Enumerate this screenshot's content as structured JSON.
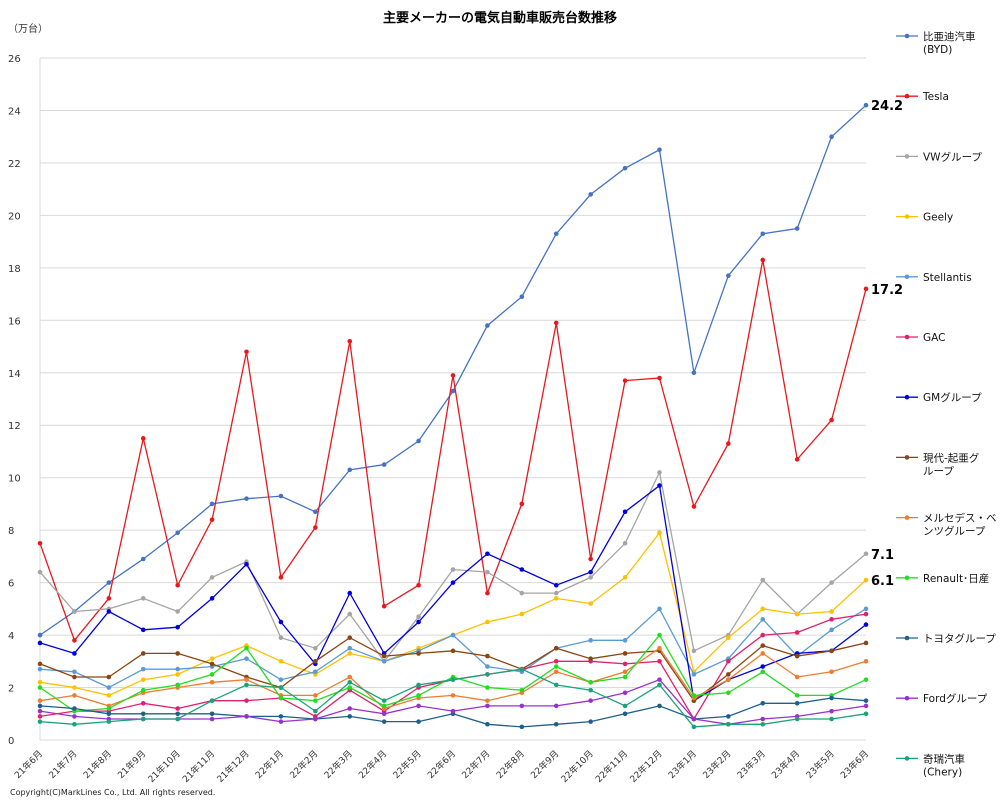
{
  "chart_data": {
    "type": "line",
    "title": "主要メーカーの電気自動車販売台数推移",
    "unit_label": "（万台）",
    "ylim": [
      0,
      26
    ],
    "y_ticks": [
      "0",
      "2",
      "4",
      "6",
      "8",
      "10",
      "12",
      "14",
      "16",
      "18",
      "20",
      "22",
      "24",
      "26"
    ],
    "grid": true,
    "legend_placement": "right",
    "categories": [
      "21年6月",
      "21年7月",
      "21年8月",
      "21年9月",
      "21年10月",
      "21年11月",
      "21年12月",
      "22年1月",
      "22年2月",
      "22年3月",
      "22年4月",
      "22年5月",
      "22年6月",
      "22年7月",
      "22年8月",
      "22年9月",
      "22年10月",
      "22年11月",
      "22年12月",
      "23年1月",
      "23年2月",
      "23年3月",
      "23年4月",
      "23年5月",
      "23年6月"
    ],
    "series": [
      {
        "name": "比亜迪汽車\n(BYD)",
        "color": "#4472C4",
        "values": [
          4.0,
          4.9,
          6.0,
          6.9,
          7.9,
          9.0,
          9.2,
          9.3,
          8.7,
          10.3,
          10.5,
          11.4,
          13.3,
          15.8,
          16.9,
          19.3,
          20.8,
          21.8,
          22.5,
          14.0,
          17.7,
          19.3,
          19.5,
          23.0,
          24.2
        ]
      },
      {
        "name": "Tesla",
        "color": "#E8181E",
        "values": [
          7.5,
          3.8,
          5.4,
          11.5,
          5.9,
          8.4,
          14.8,
          6.2,
          8.1,
          15.2,
          5.1,
          5.9,
          13.9,
          5.6,
          9.0,
          15.9,
          6.9,
          13.7,
          13.8,
          8.9,
          11.3,
          18.3,
          10.7,
          12.2,
          17.2
        ]
      },
      {
        "name": "VWグループ",
        "color": "#A5A5A5",
        "values": [
          6.4,
          4.9,
          5.0,
          5.4,
          4.9,
          6.2,
          6.8,
          3.9,
          3.5,
          4.8,
          3.0,
          4.7,
          6.5,
          6.4,
          5.6,
          5.6,
          6.2,
          7.5,
          10.2,
          3.4,
          4.0,
          6.1,
          4.8,
          6.0,
          7.1
        ]
      },
      {
        "name": "Geely",
        "color": "#FFC000",
        "values": [
          2.2,
          2.0,
          1.7,
          2.3,
          2.5,
          3.1,
          3.6,
          3.0,
          2.5,
          3.3,
          3.0,
          3.5,
          4.0,
          4.5,
          4.8,
          5.4,
          5.2,
          6.2,
          7.9,
          2.6,
          3.9,
          5.0,
          4.8,
          4.9,
          6.1
        ]
      },
      {
        "name": "Stellantis",
        "color": "#5B9BD5",
        "values": [
          2.7,
          2.6,
          2.0,
          2.7,
          2.7,
          2.8,
          3.1,
          2.3,
          2.6,
          3.5,
          3.0,
          3.4,
          4.0,
          2.8,
          2.6,
          3.5,
          3.8,
          3.8,
          5.0,
          2.5,
          3.1,
          4.6,
          3.2,
          4.2,
          5.0
        ]
      },
      {
        "name": "GAC",
        "color": "#E0206B",
        "values": [
          0.9,
          1.1,
          1.1,
          1.4,
          1.2,
          1.5,
          1.5,
          1.6,
          0.9,
          1.9,
          1.1,
          2.0,
          2.3,
          2.5,
          2.7,
          3.0,
          3.0,
          2.9,
          3.0,
          0.8,
          3.0,
          4.0,
          4.1,
          4.6,
          4.8
        ]
      },
      {
        "name": "GMグループ",
        "color": "#0000E0",
        "values": [
          3.7,
          3.3,
          4.9,
          4.2,
          4.3,
          5.4,
          6.7,
          4.5,
          2.9,
          5.6,
          3.3,
          4.5,
          6.0,
          7.1,
          6.5,
          5.9,
          6.4,
          8.7,
          9.7,
          1.5,
          2.3,
          2.8,
          3.3,
          3.4,
          4.4
        ]
      },
      {
        "name": "現代-起亜グ\nループ",
        "color": "#8B4513",
        "values": [
          2.9,
          2.4,
          2.4,
          3.3,
          3.3,
          2.9,
          2.4,
          2.0,
          3.0,
          3.9,
          3.2,
          3.3,
          3.4,
          3.2,
          2.7,
          3.5,
          3.1,
          3.3,
          3.4,
          1.5,
          2.5,
          3.6,
          3.2,
          3.4,
          3.7
        ]
      },
      {
        "name": "メルセデス・ベ\nンツグループ",
        "color": "#ED7D31",
        "values": [
          1.5,
          1.7,
          1.3,
          1.8,
          2.0,
          2.2,
          2.3,
          1.7,
          1.7,
          2.4,
          1.2,
          1.6,
          1.7,
          1.5,
          1.8,
          2.6,
          2.2,
          2.6,
          3.5,
          1.6,
          2.3,
          3.3,
          2.4,
          2.6,
          3.0
        ]
      },
      {
        "name": "Renault･日産",
        "color": "#22DD22",
        "values": [
          2.0,
          1.1,
          1.2,
          1.9,
          2.1,
          2.5,
          3.5,
          1.6,
          1.5,
          2.0,
          1.3,
          1.7,
          2.4,
          2.0,
          1.9,
          2.8,
          2.2,
          2.4,
          4.0,
          1.7,
          1.8,
          2.6,
          1.7,
          1.7,
          2.3
        ]
      },
      {
        "name": "トヨタグループ",
        "color": "#1F5F8B",
        "values": [
          1.3,
          1.2,
          1.0,
          1.0,
          1.0,
          1.0,
          0.9,
          0.9,
          0.8,
          0.9,
          0.7,
          0.7,
          1.0,
          0.6,
          0.5,
          0.6,
          0.7,
          1.0,
          1.3,
          0.8,
          0.9,
          1.4,
          1.4,
          1.6,
          1.5
        ]
      },
      {
        "name": "Fordグループ",
        "color": "#9932CC",
        "values": [
          1.1,
          0.9,
          0.8,
          0.8,
          0.8,
          0.8,
          0.9,
          0.7,
          0.8,
          1.2,
          1.0,
          1.3,
          1.1,
          1.3,
          1.3,
          1.3,
          1.5,
          1.8,
          2.3,
          0.8,
          0.6,
          0.8,
          0.9,
          1.1,
          1.3
        ]
      },
      {
        "name": "奇瑞汽車\n(Chery)",
        "color": "#1AA37A",
        "values": [
          0.7,
          0.6,
          0.7,
          0.8,
          0.8,
          1.5,
          2.1,
          2.0,
          1.1,
          2.2,
          1.5,
          2.1,
          2.3,
          2.5,
          2.7,
          2.1,
          1.9,
          1.3,
          2.1,
          0.5,
          0.6,
          0.6,
          0.8,
          0.8,
          1.0
        ]
      }
    ],
    "annotations": [
      {
        "series": "比亜迪汽車\n(BYD)",
        "text": "24.2"
      },
      {
        "series": "Tesla",
        "text": "17.2"
      },
      {
        "series": "VWグループ",
        "text": "7.1"
      },
      {
        "series": "Geely",
        "text": "6.1"
      }
    ]
  },
  "copyright": "Copyright(C)MarkLines Co., Ltd. All rights reserved."
}
